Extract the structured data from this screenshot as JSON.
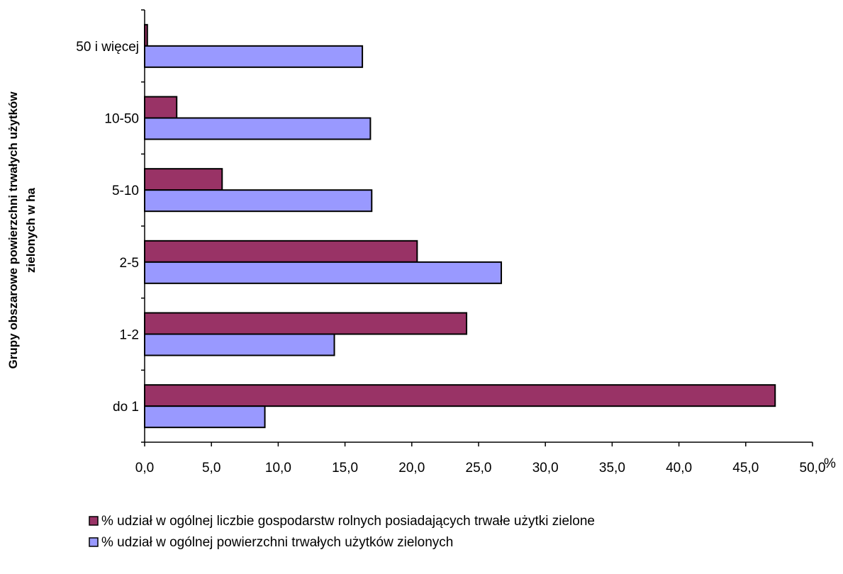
{
  "chart_data": {
    "type": "bar",
    "orientation": "horizontal",
    "categories": [
      "do 1",
      "1-2",
      "2-5",
      "5-10",
      "10-50",
      "50 i więcej"
    ],
    "series": [
      {
        "name": "% udział w ogólnej liczbie gospodarstw rolnych posiadających trwałe użytki zielone",
        "color": "#993366",
        "values": [
          47.2,
          24.1,
          20.4,
          5.8,
          2.4,
          0.2
        ]
      },
      {
        "name": "% udział w ogólnej powierzchni trwałych użytków zielonych",
        "color": "#9999ff",
        "values": [
          9.0,
          14.2,
          26.7,
          17.0,
          16.9,
          16.3
        ]
      }
    ],
    "x_ticks": [
      "0,0",
      "5,0",
      "10,0",
      "15,0",
      "20,0",
      "25,0",
      "30,0",
      "35,0",
      "40,0",
      "45,0",
      "50,0"
    ],
    "x_unit": "%",
    "xlim": [
      0,
      50
    ],
    "ylabel_lines": [
      "Grupy obszarowe powierzchni trwałych użytków",
      "zielonych w ha"
    ],
    "legend_position": "bottom",
    "grid": false
  }
}
